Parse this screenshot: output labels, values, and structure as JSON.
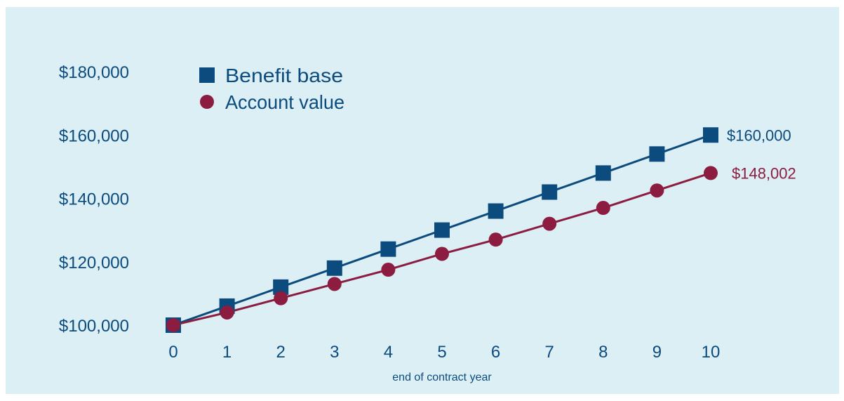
{
  "chart_data": {
    "type": "line",
    "title": "",
    "xlabel": "end of contract year",
    "ylabel": "",
    "x": [
      0,
      1,
      2,
      3,
      4,
      5,
      6,
      7,
      8,
      9,
      10
    ],
    "ylim": [
      100000,
      180000
    ],
    "yticks": [
      100000,
      120000,
      140000,
      160000,
      180000
    ],
    "ytick_labels": [
      "$100,000",
      "$120,000",
      "$140,000",
      "$160,000",
      "$180,000"
    ],
    "xtick_labels": [
      "0",
      "1",
      "2",
      "3",
      "4",
      "5",
      "6",
      "7",
      "8",
      "9",
      "10"
    ],
    "grid": false,
    "legend_position": "top-left",
    "series": [
      {
        "name": "Benefit base",
        "marker": "square",
        "color": "#0c4b7e",
        "values": [
          100000,
          106000,
          112000,
          118000,
          124000,
          130000,
          136000,
          142000,
          148000,
          154000,
          160000
        ],
        "end_label": "$160,000"
      },
      {
        "name": "Account value",
        "marker": "circle",
        "color": "#8c1d40",
        "values": [
          100000,
          104000,
          108500,
          113000,
          117500,
          122500,
          127000,
          132000,
          137000,
          142500,
          148002
        ],
        "end_label": "$148,002"
      }
    ]
  },
  "colors": {
    "background": "#dbeff5",
    "axis_text": "#0c4b7e"
  }
}
